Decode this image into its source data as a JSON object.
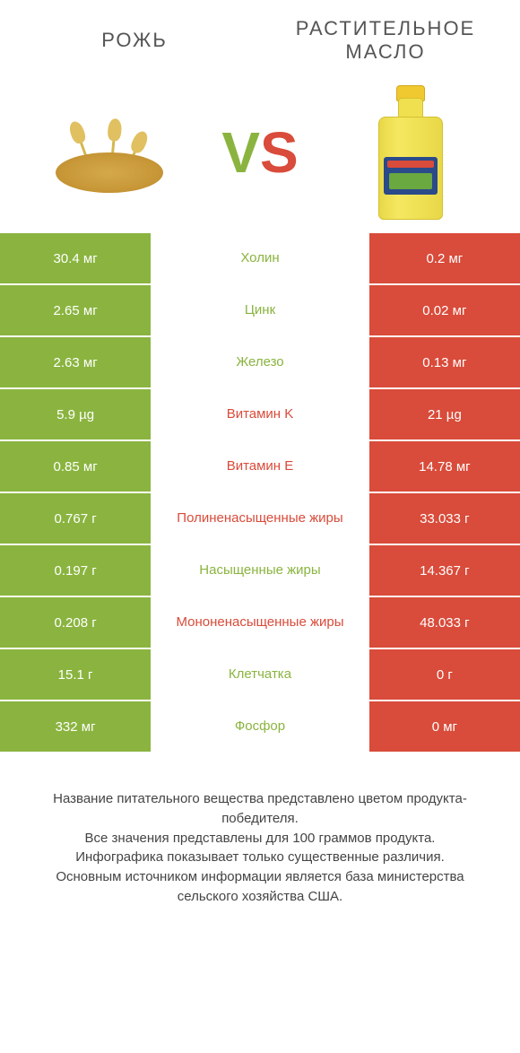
{
  "header": {
    "left_title": "РОЖЬ",
    "right_title": "РАСТИТЕЛЬНОЕ МАСЛО",
    "vs_v": "V",
    "vs_s": "S"
  },
  "colors": {
    "green": "#8ab43f",
    "red": "#d94b3a",
    "background": "#ffffff"
  },
  "table": {
    "rows": [
      {
        "left": "30.4 мг",
        "mid": "Холин",
        "right": "0.2 мг",
        "winner": "left"
      },
      {
        "left": "2.65 мг",
        "mid": "Цинк",
        "right": "0.02 мг",
        "winner": "left"
      },
      {
        "left": "2.63 мг",
        "mid": "Железо",
        "right": "0.13 мг",
        "winner": "left"
      },
      {
        "left": "5.9 µg",
        "mid": "Витамин K",
        "right": "21 µg",
        "winner": "right"
      },
      {
        "left": "0.85 мг",
        "mid": "Витамин E",
        "right": "14.78 мг",
        "winner": "right"
      },
      {
        "left": "0.767 г",
        "mid": "Полиненасыщенные жиры",
        "right": "33.033 г",
        "winner": "right"
      },
      {
        "left": "0.197 г",
        "mid": "Насыщенные жиры",
        "right": "14.367 г",
        "winner": "left"
      },
      {
        "left": "0.208 г",
        "mid": "Мононенасыщенные жиры",
        "right": "48.033 г",
        "winner": "right"
      },
      {
        "left": "15.1 г",
        "mid": "Клетчатка",
        "right": "0 г",
        "winner": "left"
      },
      {
        "left": "332 мг",
        "mid": "Фосфор",
        "right": "0 мг",
        "winner": "left"
      }
    ]
  },
  "footer": {
    "line1": "Название питательного вещества представлено цветом продукта-победителя.",
    "line2": "Все значения представлены для 100 граммов продукта.",
    "line3": "Инфографика показывает только существенные различия.",
    "line4": "Основным источником информации является база министерства сельского хозяйства США."
  }
}
